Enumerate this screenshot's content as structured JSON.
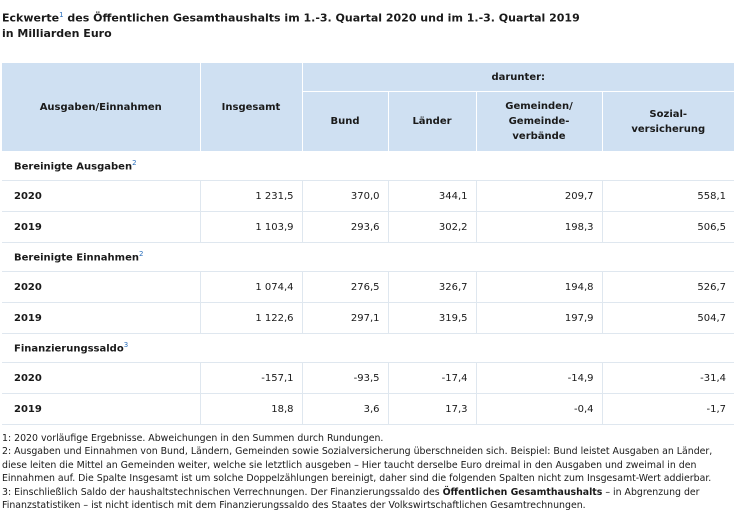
{
  "title": {
    "line1_a": "Eckwerte",
    "line1_sup": "1",
    "line1_b": " des Öffentlichen Gesamthaushalts im 1.-3. Quartal 2020 und im 1.-3. Quartal 2019",
    "line2": "in Milliarden Euro"
  },
  "header": {
    "col0": "Ausgaben/Einnahmen",
    "col1": "Insgesamt",
    "darunter": "darunter:",
    "bund": "Bund",
    "laender": "Länder",
    "gemeinden_1": "Gemeinden/",
    "gemeinden_2": "Gemeinde-",
    "gemeinden_3": "verbände",
    "sozial_1": "Sozial-",
    "sozial_2": "versicherung"
  },
  "sections": [
    {
      "label": "Bereinigte Ausgaben",
      "note": "2",
      "rows": [
        {
          "year": "2020",
          "insgesamt": "1 231,5",
          "bund": "370,0",
          "laender": "344,1",
          "gemeinden": "209,7",
          "sozial": "558,1"
        },
        {
          "year": "2019",
          "insgesamt": "1 103,9",
          "bund": "293,6",
          "laender": "302,2",
          "gemeinden": "198,3",
          "sozial": "506,5"
        }
      ]
    },
    {
      "label": "Bereinigte Einnahmen",
      "note": "2",
      "rows": [
        {
          "year": "2020",
          "insgesamt": "1 074,4",
          "bund": "276,5",
          "laender": "326,7",
          "gemeinden": "194,8",
          "sozial": "526,7"
        },
        {
          "year": "2019",
          "insgesamt": "1 122,6",
          "bund": "297,1",
          "laender": "319,5",
          "gemeinden": "197,9",
          "sozial": "504,7"
        }
      ]
    },
    {
      "label": "Finanzierungssaldo",
      "note": "3",
      "rows": [
        {
          "year": "2020",
          "insgesamt": "-157,1",
          "bund": "-93,5",
          "laender": "-17,4",
          "gemeinden": "-14,9",
          "sozial": "-31,4"
        },
        {
          "year": "2019",
          "insgesamt": "18,8",
          "bund": "3,6",
          "laender": "17,3",
          "gemeinden": "-0,4",
          "sozial": "-1,7"
        }
      ]
    }
  ],
  "notes": {
    "n1": "1: 2020 vorläufige Ergebnisse. Abweichungen in den Summen durch Rundungen.",
    "n2": "2: Ausgaben und Einnahmen von Bund, Ländern, Gemeinden sowie Sozialversicherung überschneiden sich. Beispiel: Bund leistet Ausgaben an Länder, diese leiten die Mittel an Gemeinden weiter, welche sie letztlich ausgeben – Hier taucht derselbe Euro dreimal in den Ausgaben und zweimal in den Einnahmen auf. Die Spalte Insgesamt ist um solche Doppelzählungen bereinigt, daher sind die folgenden Spalten nicht zum Insgesamt-Wert addierbar.",
    "n3_a": "3: Einschließlich Saldo der haushaltstechnischen Verrechnungen. Der Finanzierungssaldo des ",
    "n3_bold": "Öffentlichen Gesamthaushalts",
    "n3_b": " – in Abgrenzung der Finanzstatistiken – ist nicht identisch mit dem Finanzierungssaldo des Staates der Volkswirtschaftlichen Gesamtrechnungen."
  }
}
